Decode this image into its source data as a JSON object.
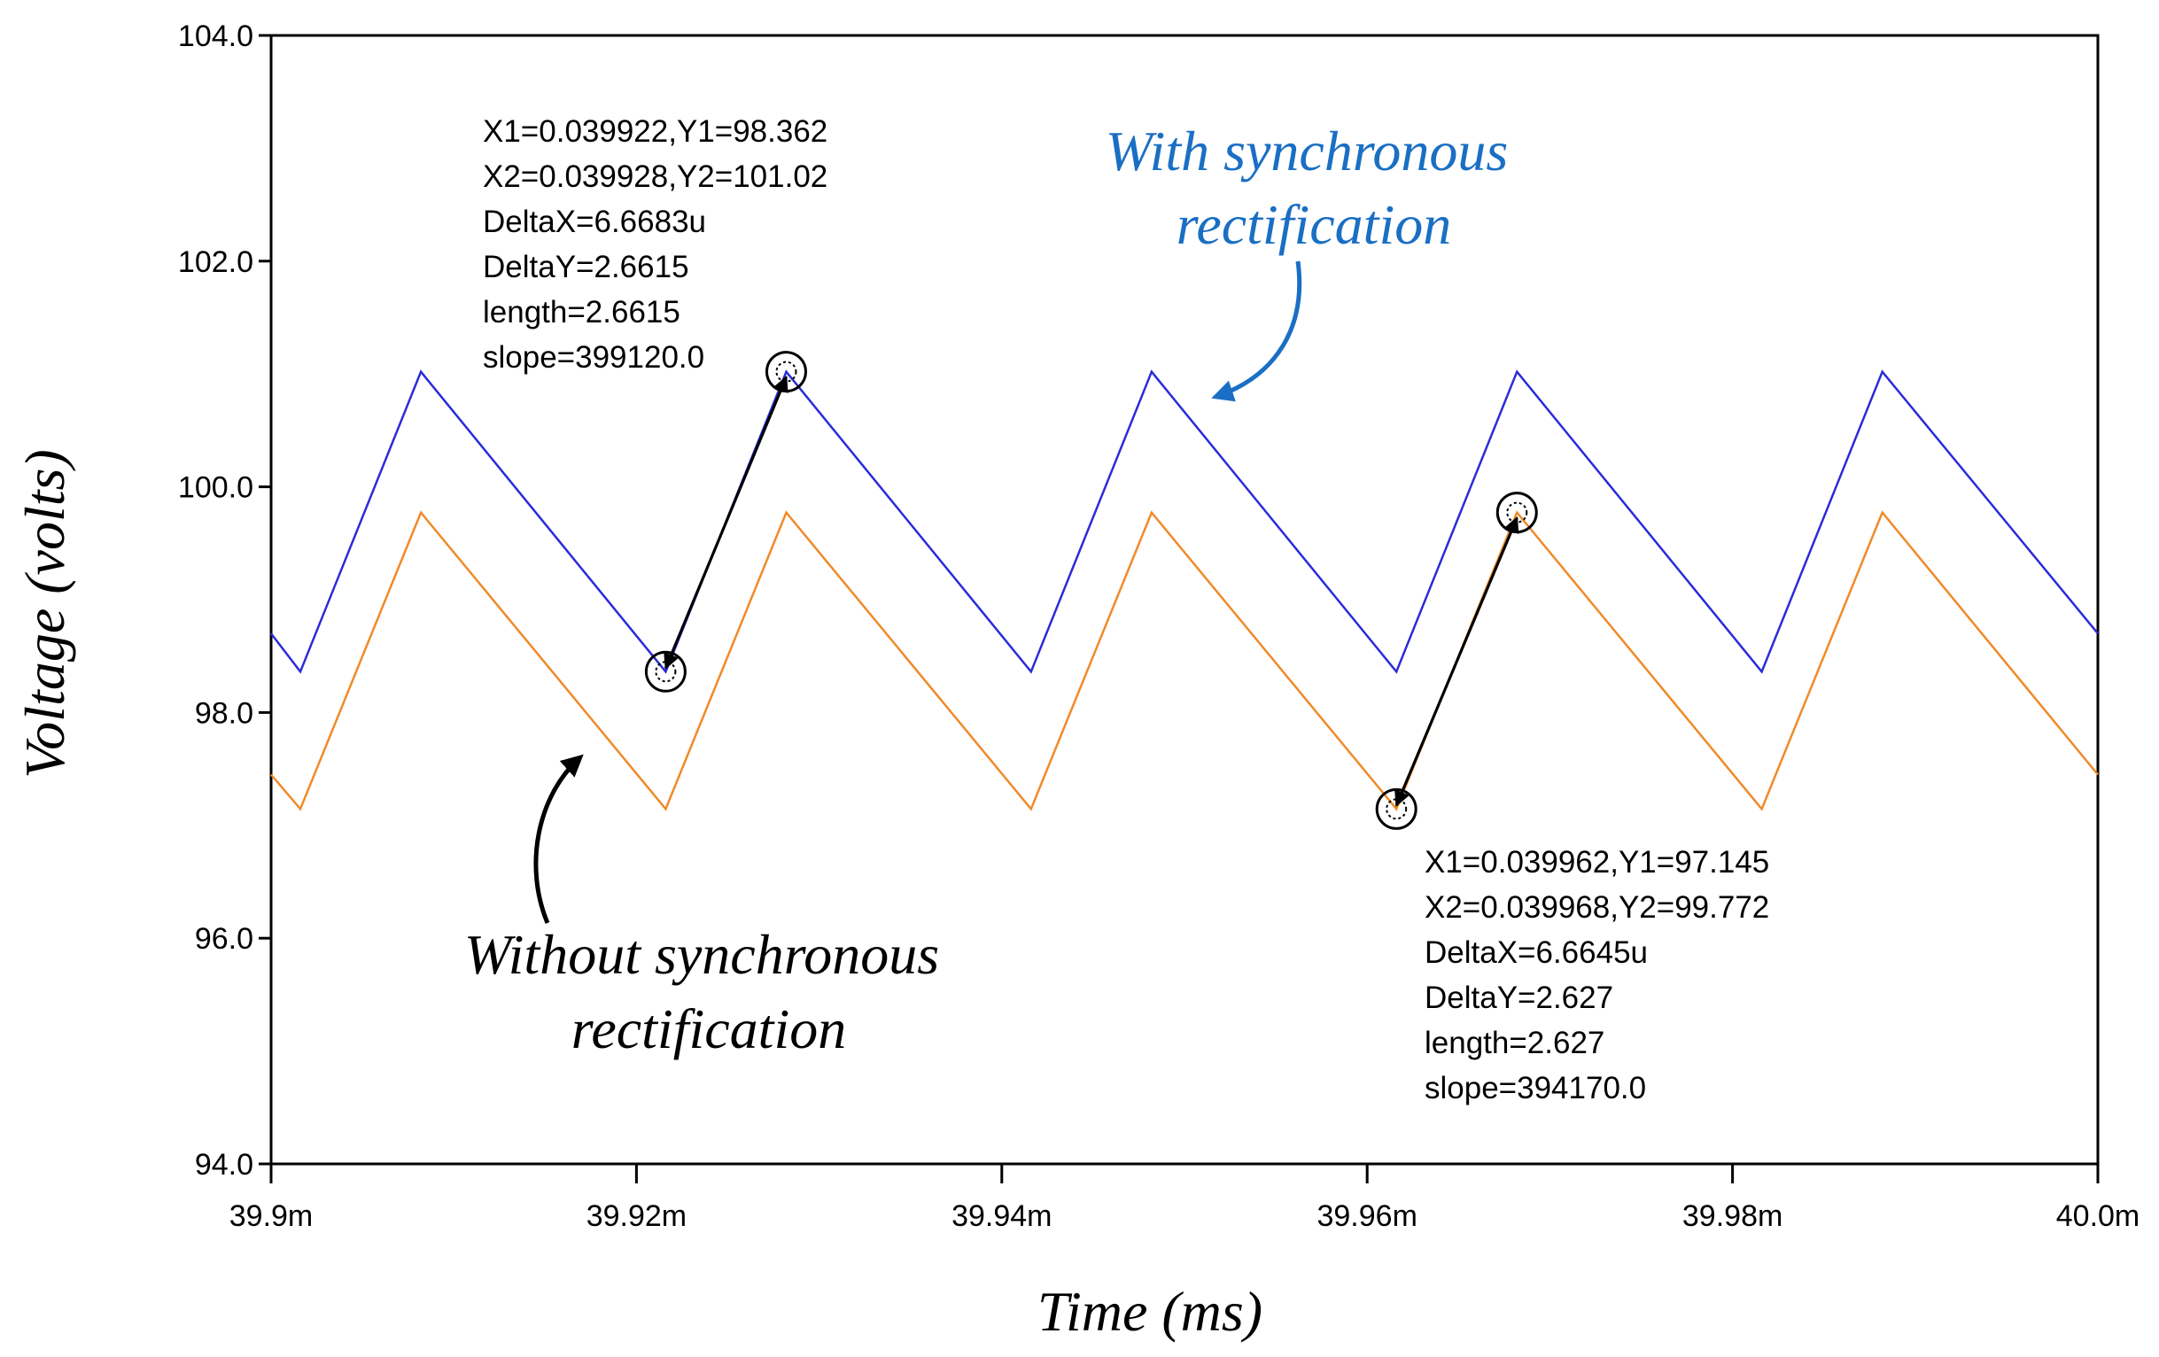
{
  "chart_data": {
    "type": "line",
    "xlabel": "Time (ms)",
    "ylabel": "Voltage (volts)",
    "xlim": [
      39.9,
      40.0
    ],
    "ylim": [
      94.0,
      104.0
    ],
    "x_ticks": [
      39.9,
      39.92,
      39.94,
      39.96,
      39.98,
      40.0
    ],
    "x_tick_labels": [
      "39.9m",
      "39.92m",
      "39.94m",
      "39.96m",
      "39.98m",
      "40.0m"
    ],
    "y_ticks": [
      94.0,
      96.0,
      98.0,
      100.0,
      102.0,
      104.0
    ],
    "y_tick_labels": [
      "94.0",
      "96.0",
      "98.0",
      "100.0",
      "102.0",
      "104.0"
    ],
    "series": [
      {
        "name": "With synchronous rectification",
        "color": "#2b2bd9",
        "x": [
          39.9,
          39.9016,
          39.9082,
          39.9216,
          39.9282,
          39.9416,
          39.9482,
          39.9616,
          39.9682,
          39.9816,
          39.9882,
          40.0
        ],
        "y": [
          98.7,
          98.362,
          101.02,
          98.362,
          101.02,
          98.362,
          101.02,
          98.362,
          101.02,
          98.362,
          101.02,
          98.7
        ]
      },
      {
        "name": "Without synchronous rectification",
        "color": "#f08a28",
        "x": [
          39.9,
          39.9016,
          39.9082,
          39.9216,
          39.9282,
          39.9416,
          39.9482,
          39.9616,
          39.9682,
          39.9816,
          39.9882,
          40.0
        ],
        "y": [
          97.45,
          97.145,
          99.772,
          97.145,
          99.772,
          97.145,
          99.772,
          97.145,
          99.772,
          97.145,
          99.772,
          97.45
        ]
      }
    ],
    "annotations": [
      {
        "label": "With synchronous rectification",
        "lines": [
          "With synchronous",
          "rectification"
        ],
        "color": "#1a6fc4"
      },
      {
        "label": "Without synchronous rectification",
        "lines": [
          "Without synchronous",
          "rectification"
        ],
        "color": "#000000"
      }
    ],
    "cursors": [
      {
        "x1": 39.9216,
        "y1": 98.362,
        "x2": 39.9282,
        "y2": 101.02,
        "lines": [
          "X1=0.039922,Y1=98.362",
          "X2=0.039928,Y2=101.02",
          "DeltaX=6.6683u",
          "DeltaY=2.6615",
          "length=2.6615",
          "slope=399120.0"
        ]
      },
      {
        "x1": 39.9616,
        "y1": 97.145,
        "x2": 39.9682,
        "y2": 99.772,
        "lines": [
          "X1=0.039962,Y1=97.145",
          "X2=0.039968,Y2=99.772",
          "DeltaX=6.6645u",
          "DeltaY=2.627",
          "length=2.627",
          "slope=394170.0"
        ]
      }
    ]
  }
}
